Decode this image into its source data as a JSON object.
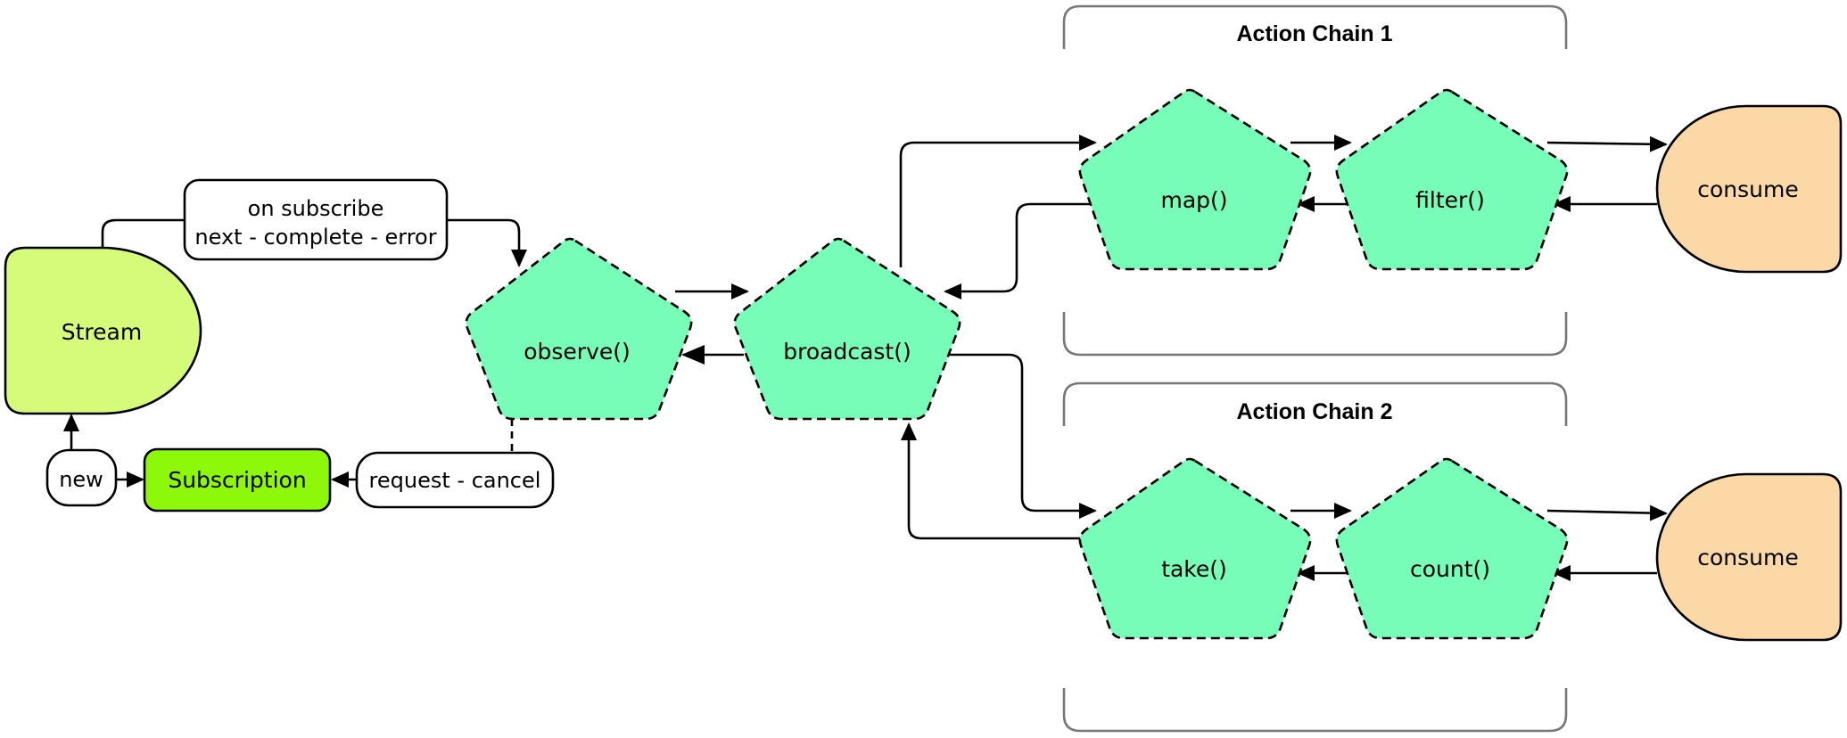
{
  "nodes": {
    "stream": "Stream",
    "subscription": "Subscription",
    "observe": "observe()",
    "broadcast": "broadcast()",
    "map": "map()",
    "filter": "filter()",
    "take": "take()",
    "count": "count()",
    "consume_1": "consume",
    "consume_2": "consume"
  },
  "edge_labels": {
    "on_subscribe_line1": "on subscribe",
    "on_subscribe_line2": "next - complete - error",
    "new": "new",
    "request_cancel": "request - cancel"
  },
  "groups": {
    "chain_1": "Action Chain 1",
    "chain_2": "Action Chain 2"
  },
  "colors": {
    "stream_fill": "#d6fb7a",
    "subscription_fill": "#8ef80a",
    "operator_fill": "#77fdb7",
    "consume_fill": "#fdd8a7",
    "bracket_stroke": "#777777"
  }
}
